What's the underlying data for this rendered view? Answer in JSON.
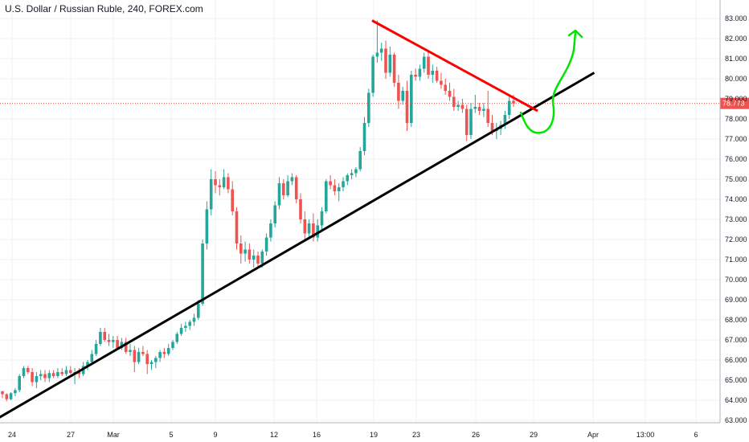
{
  "chart_data": {
    "type": "candlestick",
    "title": "U.S. Dollar / Russian Ruble, 240, FOREX.com",
    "xlabel": "",
    "ylabel": "",
    "ylim": [
      63.0,
      83.4
    ],
    "y_ticks": [
      "83.000",
      "82.000",
      "81.000",
      "80.000",
      "79.000",
      "78.000",
      "77.000",
      "76.000",
      "75.000",
      "74.000",
      "73.000",
      "72.000",
      "71.000",
      "70.000",
      "69.000",
      "68.000",
      "67.000",
      "66.000",
      "65.000",
      "64.000",
      "63.000"
    ],
    "x_ticks": [
      "24",
      "27",
      "Mar",
      "5",
      "9",
      "12",
      "16",
      "19",
      "23",
      "26",
      "29",
      "Apr",
      "13:00",
      "6"
    ],
    "last_price": "78.773",
    "grid": true,
    "colors": {
      "up": "#26a69a",
      "down": "#ef5350",
      "last_price": "#ef5350",
      "support_line": "#000000",
      "resistance_line": "#ff0000",
      "projection": "#00e600"
    },
    "candles_ohlc": [
      [
        64.45,
        64.4,
        64.1,
        64.3
      ],
      [
        64.3,
        64.35,
        63.95,
        64.05
      ],
      [
        64.05,
        64.4,
        64.0,
        64.35
      ],
      [
        64.35,
        64.6,
        64.2,
        64.5
      ],
      [
        64.5,
        65.3,
        64.4,
        65.2
      ],
      [
        65.2,
        65.7,
        65.1,
        65.6
      ],
      [
        65.6,
        65.7,
        65.3,
        65.4
      ],
      [
        65.4,
        65.6,
        64.7,
        64.9
      ],
      [
        64.9,
        65.4,
        64.6,
        65.2
      ],
      [
        65.2,
        65.5,
        65.0,
        65.3
      ],
      [
        65.3,
        65.5,
        64.9,
        65.1
      ],
      [
        65.1,
        65.5,
        64.9,
        65.35
      ],
      [
        65.35,
        65.5,
        65.1,
        65.2
      ],
      [
        65.2,
        65.6,
        65.1,
        65.4
      ],
      [
        65.4,
        65.6,
        65.2,
        65.3
      ],
      [
        65.3,
        65.7,
        65.2,
        65.5
      ],
      [
        65.5,
        65.7,
        65.3,
        65.35
      ],
      [
        65.35,
        65.6,
        64.8,
        65.4
      ],
      [
        65.4,
        65.6,
        65.1,
        65.3
      ],
      [
        65.3,
        65.9,
        65.2,
        65.7
      ],
      [
        65.7,
        66.0,
        65.5,
        65.9
      ],
      [
        65.9,
        66.5,
        65.8,
        66.3
      ],
      [
        66.3,
        67.0,
        66.2,
        66.8
      ],
      [
        66.8,
        67.6,
        66.7,
        67.4
      ],
      [
        67.4,
        67.6,
        66.9,
        67.0
      ],
      [
        67.0,
        67.3,
        66.7,
        66.9
      ],
      [
        66.9,
        67.2,
        66.6,
        67.0
      ],
      [
        67.0,
        67.2,
        66.5,
        66.6
      ],
      [
        66.6,
        67.1,
        66.5,
        66.9
      ],
      [
        66.9,
        67.1,
        66.3,
        66.4
      ],
      [
        66.4,
        66.8,
        66.2,
        66.5
      ],
      [
        66.5,
        66.7,
        65.4,
        65.9
      ],
      [
        65.9,
        66.6,
        65.8,
        66.4
      ],
      [
        66.4,
        66.7,
        66.2,
        66.3
      ],
      [
        66.3,
        66.5,
        65.3,
        65.8
      ],
      [
        65.8,
        66.0,
        65.5,
        65.9
      ],
      [
        65.9,
        66.2,
        65.6,
        66.1
      ],
      [
        66.1,
        66.5,
        65.9,
        66.4
      ],
      [
        66.4,
        66.6,
        66.1,
        66.3
      ],
      [
        66.3,
        66.8,
        66.2,
        66.6
      ],
      [
        66.6,
        67.0,
        66.5,
        66.9
      ],
      [
        66.9,
        67.4,
        66.8,
        67.3
      ],
      [
        67.3,
        67.8,
        67.2,
        67.6
      ],
      [
        67.6,
        67.9,
        67.4,
        67.7
      ],
      [
        67.7,
        68.0,
        67.5,
        67.9
      ],
      [
        67.9,
        68.3,
        67.7,
        68.1
      ],
      [
        68.1,
        69.0,
        68.0,
        68.8
      ],
      [
        68.8,
        72.0,
        68.7,
        71.8
      ],
      [
        71.8,
        73.9,
        71.5,
        73.5
      ],
      [
        73.5,
        75.5,
        73.2,
        75.0
      ],
      [
        75.0,
        75.4,
        74.3,
        74.7
      ],
      [
        74.7,
        75.0,
        74.2,
        74.6
      ],
      [
        74.6,
        75.5,
        74.5,
        75.1
      ],
      [
        75.1,
        75.3,
        74.3,
        74.5
      ],
      [
        74.5,
        74.9,
        73.2,
        73.4
      ],
      [
        73.4,
        73.6,
        71.5,
        71.8
      ],
      [
        71.8,
        72.2,
        70.8,
        71.3
      ],
      [
        71.3,
        71.9,
        70.9,
        71.5
      ],
      [
        71.5,
        71.8,
        70.8,
        71.0
      ],
      [
        71.0,
        71.5,
        70.6,
        71.2
      ],
      [
        71.2,
        71.4,
        70.6,
        70.8
      ],
      [
        70.8,
        71.5,
        70.6,
        71.4
      ],
      [
        71.4,
        72.3,
        71.2,
        72.1
      ],
      [
        72.1,
        73.0,
        71.9,
        72.8
      ],
      [
        72.8,
        73.9,
        72.6,
        73.7
      ],
      [
        73.7,
        75.1,
        73.5,
        74.8
      ],
      [
        74.8,
        75.0,
        74.0,
        74.2
      ],
      [
        74.2,
        75.2,
        74.1,
        74.9
      ],
      [
        74.9,
        75.3,
        74.7,
        75.1
      ],
      [
        75.1,
        75.2,
        73.8,
        74.0
      ],
      [
        74.0,
        74.3,
        72.8,
        73.0
      ],
      [
        73.0,
        73.4,
        72.0,
        72.3
      ],
      [
        72.3,
        73.0,
        72.0,
        72.8
      ],
      [
        72.8,
        73.3,
        71.9,
        72.1
      ],
      [
        72.1,
        73.0,
        71.9,
        72.7
      ],
      [
        72.7,
        73.6,
        72.5,
        73.4
      ],
      [
        73.4,
        75.0,
        73.3,
        74.9
      ],
      [
        74.9,
        75.2,
        74.5,
        74.7
      ],
      [
        74.7,
        75.0,
        74.2,
        74.4
      ],
      [
        74.4,
        74.8,
        73.9,
        74.6
      ],
      [
        74.6,
        75.1,
        74.4,
        74.9
      ],
      [
        74.9,
        75.3,
        74.7,
        75.2
      ],
      [
        75.2,
        75.5,
        75.0,
        75.3
      ],
      [
        75.3,
        75.6,
        75.1,
        75.5
      ],
      [
        75.5,
        76.6,
        75.4,
        76.4
      ],
      [
        76.4,
        78.1,
        76.2,
        77.8
      ],
      [
        77.8,
        79.5,
        77.6,
        79.3
      ],
      [
        79.3,
        81.2,
        79.1,
        81.1
      ],
      [
        81.1,
        82.9,
        80.8,
        81.3
      ],
      [
        81.3,
        81.8,
        80.9,
        81.5
      ],
      [
        81.5,
        81.9,
        80.0,
        80.3
      ],
      [
        80.3,
        81.6,
        80.1,
        81.2
      ],
      [
        81.2,
        81.3,
        79.6,
        79.8
      ],
      [
        79.8,
        80.2,
        78.5,
        78.9
      ],
      [
        78.9,
        79.6,
        78.7,
        79.4
      ],
      [
        79.4,
        79.9,
        77.4,
        77.8
      ],
      [
        77.8,
        80.4,
        77.6,
        80.2
      ],
      [
        80.2,
        80.5,
        79.9,
        80.1
      ],
      [
        80.1,
        80.7,
        79.9,
        80.5
      ],
      [
        80.5,
        81.3,
        80.3,
        81.1
      ],
      [
        81.1,
        81.4,
        80.0,
        80.2
      ],
      [
        80.2,
        80.7,
        79.8,
        80.4
      ],
      [
        80.4,
        80.6,
        79.8,
        79.9
      ],
      [
        79.9,
        80.3,
        79.5,
        79.7
      ],
      [
        79.7,
        80.0,
        79.2,
        79.4
      ],
      [
        79.4,
        79.8,
        78.9,
        79.1
      ],
      [
        79.1,
        79.5,
        78.4,
        78.6
      ],
      [
        78.6,
        78.9,
        78.4,
        78.7
      ],
      [
        78.7,
        79.0,
        78.3,
        78.5
      ],
      [
        78.5,
        78.7,
        76.9,
        77.2
      ],
      [
        77.2,
        78.8,
        77.0,
        78.5
      ],
      [
        78.5,
        79.2,
        78.3,
        78.6
      ],
      [
        78.6,
        78.8,
        78.2,
        78.4
      ],
      [
        78.4,
        78.8,
        78.1,
        78.5
      ],
      [
        78.5,
        79.4,
        77.6,
        77.8
      ],
      [
        77.8,
        78.2,
        77.2,
        77.4
      ],
      [
        77.4,
        77.8,
        77.0,
        77.5
      ],
      [
        77.5,
        77.9,
        77.2,
        77.7
      ],
      [
        77.7,
        78.4,
        77.5,
        78.2
      ],
      [
        78.2,
        79.1,
        78.0,
        78.9
      ],
      [
        78.9,
        79.2,
        78.6,
        78.77
      ]
    ],
    "annotations": {
      "support_line": [
        [
          -3.5,
          62.8
        ],
        [
          126.5,
          80.3
        ]
      ],
      "resistance_line": [
        [
          -1.0,
          82.9
        ],
        [
          36.5,
          78.4
        ]
      ],
      "projection_note": "green hand-drawn arrow pointing upward"
    }
  }
}
